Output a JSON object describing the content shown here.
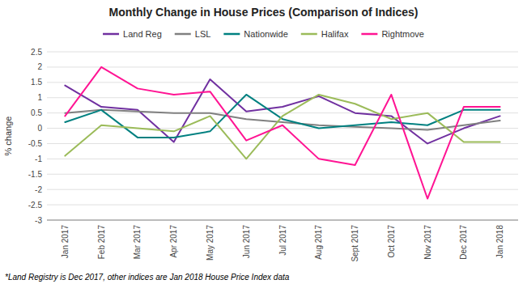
{
  "chart_data": {
    "type": "line",
    "title": "Monthly Change in House Prices (Comparison of Indices)",
    "y_label": "% change",
    "footnote": "*Land Registry is Dec 2017, other indices are Jan 2018 House Price Index data",
    "categories": [
      "Jan 2017",
      "Feb 2017",
      "Mar 2017",
      "Apr 2017",
      "May 2017",
      "Jun 2017",
      "Jul 2017",
      "Aug 2017",
      "Sept 2017",
      "Oct 2017",
      "Nov 2017",
      "Dec 2017",
      "Jan 2018"
    ],
    "series": [
      {
        "name": "Land Reg",
        "color": "#7030A0",
        "values": [
          1.4,
          0.7,
          0.6,
          -0.45,
          1.6,
          0.55,
          0.7,
          1.05,
          0.5,
          0.4,
          -0.5,
          0.0,
          0.4
        ]
      },
      {
        "name": "LSL",
        "color": "#808080",
        "values": [
          0.5,
          0.6,
          0.55,
          0.5,
          0.5,
          0.3,
          0.2,
          0.1,
          0.05,
          0.0,
          -0.05,
          0.1,
          0.25
        ]
      },
      {
        "name": "Nationwide",
        "color": "#008080",
        "values": [
          0.2,
          0.6,
          -0.3,
          -0.3,
          -0.1,
          1.1,
          0.3,
          0.0,
          0.1,
          0.2,
          0.1,
          0.6,
          0.6
        ]
      },
      {
        "name": "Halifax",
        "color": "#9BBB59",
        "values": [
          -0.9,
          0.1,
          0.0,
          -0.1,
          0.4,
          -1.0,
          0.4,
          1.1,
          0.8,
          0.3,
          0.5,
          -0.45,
          -0.45
        ]
      },
      {
        "name": "Rightmove",
        "color": "#FF1493",
        "values": [
          0.4,
          2.0,
          1.3,
          1.1,
          1.2,
          -0.4,
          0.1,
          -1.0,
          -1.2,
          1.1,
          -2.3,
          0.7,
          0.7
        ]
      }
    ],
    "ylim": [
      -3.0,
      2.5
    ],
    "yticks": [
      -3,
      -2.5,
      -2,
      -1.5,
      -1,
      -0.5,
      0,
      0.5,
      1,
      1.5,
      2,
      2.5
    ],
    "grid": true,
    "legend": "top"
  }
}
